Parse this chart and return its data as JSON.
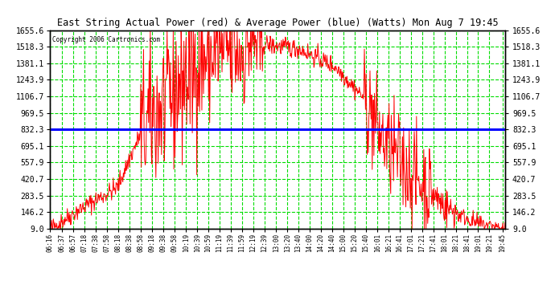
{
  "title": "East String Actual Power (red) & Average Power (blue) (Watts) Mon Aug 7 19:45",
  "copyright": "Copyright 2006 Cartronics.com",
  "y_ticks": [
    9.0,
    146.2,
    283.5,
    420.7,
    557.9,
    695.1,
    832.3,
    969.5,
    1106.7,
    1243.9,
    1381.1,
    1518.3,
    1655.6
  ],
  "y_min": 9.0,
  "y_max": 1655.6,
  "average_power": 832.3,
  "plot_bg_color": "#ffffff",
  "fig_bg_color": "#ffffff",
  "line_color": "#ff0000",
  "avg_line_color": "#0000ff",
  "grid_color": "#00dd00",
  "border_color": "#000000",
  "title_bg": "#ffffff",
  "x_labels": [
    "06:16",
    "06:37",
    "06:57",
    "07:18",
    "07:38",
    "07:58",
    "08:18",
    "08:38",
    "08:58",
    "09:18",
    "09:38",
    "09:58",
    "10:19",
    "10:39",
    "10:59",
    "11:19",
    "11:39",
    "11:59",
    "12:19",
    "12:39",
    "13:00",
    "13:20",
    "13:40",
    "14:00",
    "14:20",
    "14:40",
    "15:00",
    "15:20",
    "15:40",
    "16:01",
    "16:21",
    "16:41",
    "17:01",
    "17:21",
    "17:41",
    "18:01",
    "18:21",
    "18:41",
    "19:01",
    "19:21",
    "19:45"
  ],
  "seed": 42,
  "n_points": 813
}
